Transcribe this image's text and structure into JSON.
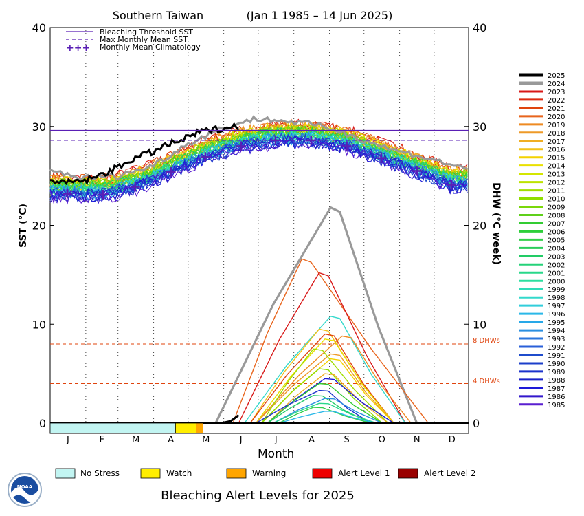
{
  "chart_data": {
    "type": "line",
    "title": "Southern Taiwan",
    "subtitle": "(Jan 1 1985 – 14 Jun 2025)",
    "xlabel": "Month",
    "ylabel_left": "SST (°C)",
    "ylabel_right": "DHW (°C week)",
    "ylim": [
      0,
      40
    ],
    "y_ticks": [
      0,
      10,
      20,
      30,
      40
    ],
    "x_ticks": [
      "J",
      "F",
      "M",
      "A",
      "M",
      "J",
      "J",
      "A",
      "S",
      "O",
      "N",
      "D"
    ],
    "grid": "dotted vertical month boundaries",
    "legend_top": [
      {
        "label": "Bleaching Threshold SST",
        "style": "solid",
        "color": "#5a1fb5"
      },
      {
        "label": "Max Monthly Mean SST",
        "style": "dashed",
        "color": "#5a1fb5"
      },
      {
        "label": "Monthly Mean Climatology",
        "style": "plus",
        "color": "#5a1fb5"
      }
    ],
    "bleaching_threshold_sst": 29.6,
    "max_monthly_mean_sst": 28.6,
    "dhw_reference_lines": [
      {
        "value": 8,
        "label": "8 DHWs",
        "color": "#e0440e"
      },
      {
        "value": 4,
        "label": "4 DHWs",
        "color": "#e0440e"
      }
    ],
    "monthly_mean_climatology": [
      23.2,
      23.1,
      23.9,
      25.4,
      26.9,
      28.0,
      28.6,
      28.6,
      28.0,
      26.8,
      25.5,
      24.1
    ],
    "series_2025_sst": {
      "day": [
        1,
        10,
        20,
        30,
        40,
        50,
        60,
        70,
        80,
        90,
        100,
        110,
        120,
        130,
        140,
        150,
        160,
        165
      ],
      "value": [
        24.8,
        24.2,
        24.4,
        24.5,
        24.8,
        25.4,
        25.8,
        26.6,
        27.0,
        27.4,
        28.0,
        28.4,
        28.8,
        29.4,
        29.6,
        29.8,
        30.0,
        30.0
      ]
    },
    "series_2024_sst": {
      "day": [
        1,
        30,
        60,
        90,
        120,
        150,
        180,
        210,
        240,
        270,
        300,
        330,
        365
      ],
      "value": [
        25.6,
        24.8,
        25.0,
        26.0,
        28.2,
        29.8,
        30.8,
        30.5,
        30.0,
        28.8,
        27.6,
        26.8,
        25.6
      ]
    },
    "dhw_peaks": [
      {
        "year": "2024",
        "color": "#999999",
        "peak": 21.8,
        "start": 145,
        "peak_day": 245,
        "end": 320
      },
      {
        "year": "2020",
        "color": "#e8641c",
        "peak": 16.6,
        "start": 160,
        "peak_day": 220,
        "end": 330
      },
      {
        "year": "2023",
        "color": "#d81818",
        "peak": 15.2,
        "start": 165,
        "peak_day": 235,
        "end": 310
      },
      {
        "year": "1998",
        "color": "#33d9cc",
        "peak": 10.8,
        "start": 170,
        "peak_day": 245,
        "end": 310
      },
      {
        "year": "2016",
        "color": "#f2c21a",
        "peak": 9.5,
        "start": 175,
        "peak_day": 235,
        "end": 300
      },
      {
        "year": "2021",
        "color": "#e0440e",
        "peak": 9.0,
        "start": 175,
        "peak_day": 240,
        "end": 300
      },
      {
        "year": "2019",
        "color": "#ee8a22",
        "peak": 8.8,
        "start": 180,
        "peak_day": 255,
        "end": 315
      },
      {
        "year": "2014",
        "color": "#e9e000",
        "peak": 8.5,
        "start": 180,
        "peak_day": 240,
        "end": 300
      },
      {
        "year": "2018",
        "color": "#ee9a28",
        "peak": 7.0,
        "start": 180,
        "peak_day": 245,
        "end": 300
      },
      {
        "year": "2011",
        "color": "#a0de00",
        "peak": 7.5,
        "start": 185,
        "peak_day": 230,
        "end": 295
      },
      {
        "year": "2015",
        "color": "#f4d200",
        "peak": 6.5,
        "start": 185,
        "peak_day": 245,
        "end": 300
      },
      {
        "year": "2010",
        "color": "#8fde00",
        "peak": 5.5,
        "start": 185,
        "peak_day": 235,
        "end": 290
      },
      {
        "year": "2017",
        "color": "#f0ae24",
        "peak": 5.0,
        "start": 190,
        "peak_day": 240,
        "end": 295
      },
      {
        "year": "1987",
        "color": "#1e1bd8",
        "peak": 4.5,
        "start": 190,
        "peak_day": 240,
        "end": 300
      },
      {
        "year": "2007",
        "color": "#33cc33",
        "peak": 4.0,
        "start": 190,
        "peak_day": 235,
        "end": 290
      },
      {
        "year": "1989",
        "color": "#1c33cc",
        "peak": 3.3,
        "start": 180,
        "peak_day": 235,
        "end": 280
      },
      {
        "year": "2003",
        "color": "#22cc66",
        "peak": 2.8,
        "start": 190,
        "peak_day": 230,
        "end": 280
      },
      {
        "year": "1994",
        "color": "#2a8fe0",
        "peak": 2.5,
        "start": 195,
        "peak_day": 240,
        "end": 290
      },
      {
        "year": "2001",
        "color": "#28d88a",
        "peak": 2.0,
        "start": 195,
        "peak_day": 235,
        "end": 285
      },
      {
        "year": "2005",
        "color": "#33d04a",
        "peak": 1.6,
        "start": 200,
        "peak_day": 230,
        "end": 280
      },
      {
        "year": "1996",
        "color": "#2ab8e8",
        "peak": 1.2,
        "start": 200,
        "peak_day": 240,
        "end": 285
      },
      {
        "year": "2025",
        "color": "#000000",
        "peak": 0.8,
        "start": 150,
        "peak_day": 165,
        "end": 165
      }
    ],
    "legend_years": [
      {
        "year": "2025",
        "color": "#000000"
      },
      {
        "year": "2024",
        "color": "#999999"
      },
      {
        "year": "2023",
        "color": "#d81818"
      },
      {
        "year": "2022",
        "color": "#dc2a12"
      },
      {
        "year": "2021",
        "color": "#e0440e"
      },
      {
        "year": "2020",
        "color": "#e8641c"
      },
      {
        "year": "2019",
        "color": "#ee8a22"
      },
      {
        "year": "2018",
        "color": "#ee9a28"
      },
      {
        "year": "2017",
        "color": "#f0ae24"
      },
      {
        "year": "2016",
        "color": "#f2c21a"
      },
      {
        "year": "2015",
        "color": "#f4d200"
      },
      {
        "year": "2014",
        "color": "#e9e000"
      },
      {
        "year": "2013",
        "color": "#d4e600"
      },
      {
        "year": "2012",
        "color": "#bce300"
      },
      {
        "year": "2011",
        "color": "#a0de00"
      },
      {
        "year": "2010",
        "color": "#8fde00"
      },
      {
        "year": "2009",
        "color": "#7ad80a"
      },
      {
        "year": "2008",
        "color": "#5fd01a"
      },
      {
        "year": "2007",
        "color": "#33cc33"
      },
      {
        "year": "2006",
        "color": "#2dcf3a"
      },
      {
        "year": "2005",
        "color": "#33d04a"
      },
      {
        "year": "2004",
        "color": "#2bcd5a"
      },
      {
        "year": "2003",
        "color": "#22cc66"
      },
      {
        "year": "2002",
        "color": "#25d278"
      },
      {
        "year": "2001",
        "color": "#28d88a"
      },
      {
        "year": "2000",
        "color": "#2ddfa0"
      },
      {
        "year": "1999",
        "color": "#30dcb8"
      },
      {
        "year": "1998",
        "color": "#33d9cc"
      },
      {
        "year": "1997",
        "color": "#31cedb"
      },
      {
        "year": "1996",
        "color": "#2ab8e8"
      },
      {
        "year": "1995",
        "color": "#27a8e8"
      },
      {
        "year": "1994",
        "color": "#2a8fe0"
      },
      {
        "year": "1993",
        "color": "#2b76dc"
      },
      {
        "year": "1992",
        "color": "#2a5fd8"
      },
      {
        "year": "1991",
        "color": "#1f4ccc"
      },
      {
        "year": "1990",
        "color": "#1c3fca"
      },
      {
        "year": "1989",
        "color": "#1c33cc"
      },
      {
        "year": "1988",
        "color": "#1a22c8"
      },
      {
        "year": "1987",
        "color": "#1e1bd8"
      },
      {
        "year": "1986",
        "color": "#3318cc"
      },
      {
        "year": "1985",
        "color": "#5a1fd0"
      }
    ],
    "alert_bar_2025": [
      {
        "level": "No Stress",
        "start": 1,
        "end": 110
      },
      {
        "level": "Watch",
        "start": 110,
        "end": 128
      },
      {
        "level": "Warning",
        "start": 128,
        "end": 134
      }
    ],
    "alert_legend": [
      {
        "label": "No Stress",
        "color": "#c2f5f2"
      },
      {
        "label": "Watch",
        "color": "#ffee00"
      },
      {
        "label": "Warning",
        "color": "#ffa500"
      },
      {
        "label": "Alert Level 1",
        "color": "#ee0000"
      },
      {
        "label": "Alert Level 2",
        "color": "#990000"
      }
    ],
    "footer_title": "Bleaching Alert Levels for 2025"
  },
  "logo": {
    "text": "NOAA"
  }
}
